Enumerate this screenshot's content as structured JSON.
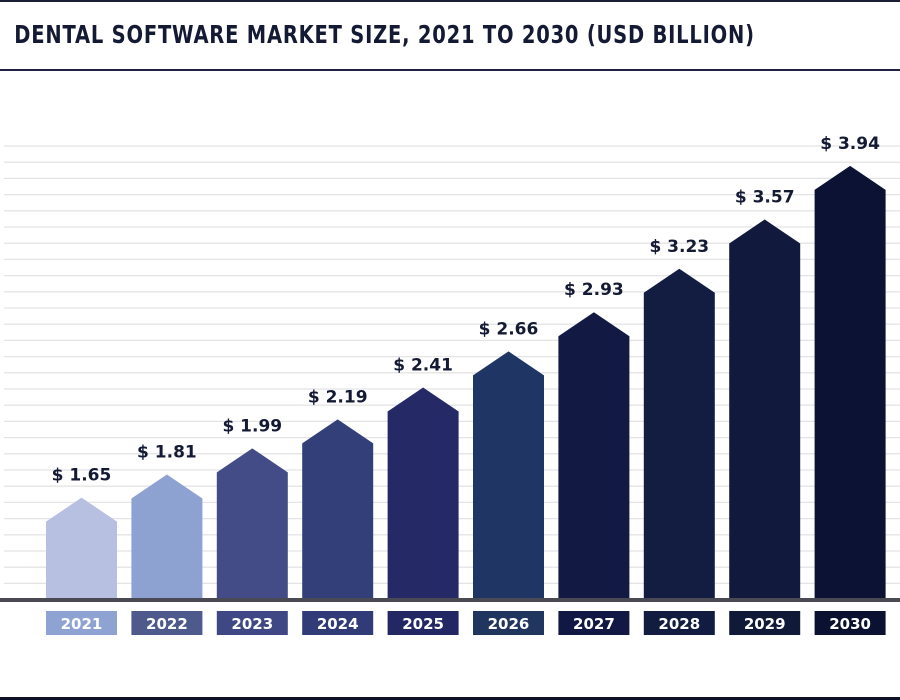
{
  "chart_data": {
    "type": "bar",
    "title": "DENTAL SOFTWARE MARKET SIZE, 2021 TO 2030 (USD BILLION)",
    "xlabel": "",
    "ylabel": "",
    "categories": [
      "2021",
      "2022",
      "2023",
      "2024",
      "2025",
      "2026",
      "2027",
      "2028",
      "2029",
      "2030"
    ],
    "values": [
      1.65,
      1.81,
      1.99,
      2.19,
      2.41,
      2.66,
      2.93,
      3.23,
      3.57,
      3.94
    ],
    "data_labels": [
      "$ 1.65",
      "$ 1.81",
      "$ 1.99",
      "$ 2.19",
      "$ 2.41",
      "$ 2.66",
      "$ 2.93",
      "$ 3.23",
      "$ 3.57",
      "$ 3.94"
    ],
    "ylim": [
      0.95,
      4.05
    ],
    "grid": true,
    "legend": "none",
    "bar_colors": [
      "#b7c0e0",
      "#8ea2d2",
      "#434c86",
      "#323f78",
      "#252966",
      "#1f3563",
      "#121a44",
      "#131d42",
      "#111a3c",
      "#0b1234"
    ],
    "label_box_colors": [
      "#8fa3d3",
      "#4f5a8c",
      "#3f4885",
      "#303b78",
      "#232864",
      "#21365f",
      "#111843",
      "#121c40",
      "#101938",
      "#0a1131"
    ]
  }
}
